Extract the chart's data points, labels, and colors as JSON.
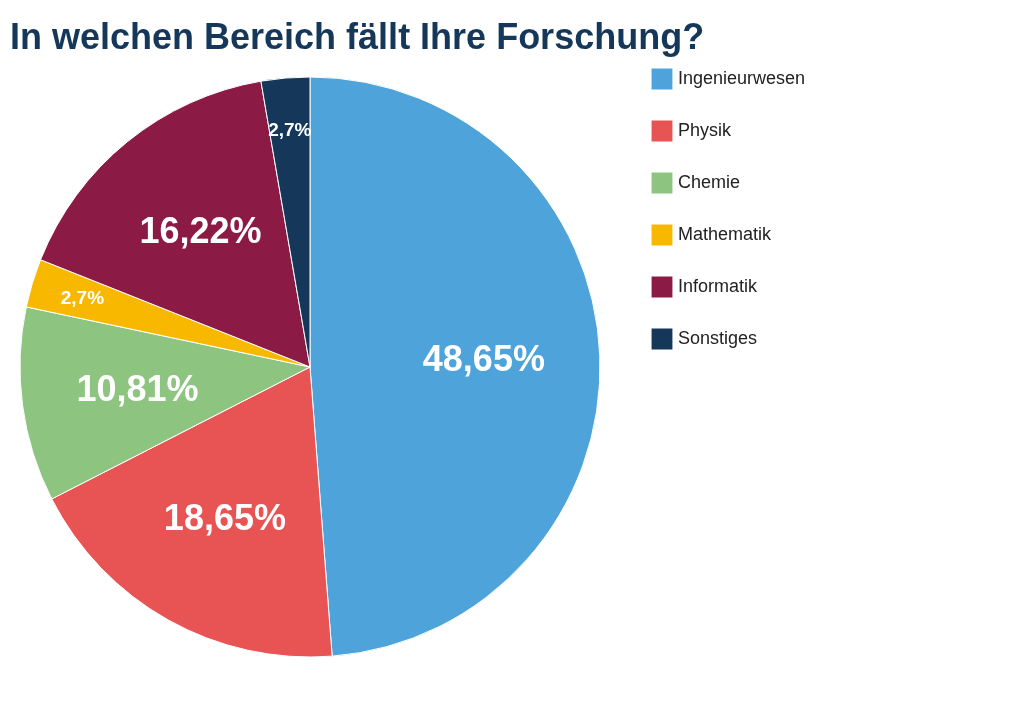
{
  "chart_data": {
    "type": "pie",
    "title": "In welchen Bereich fällt Ihre Forschung?",
    "categories": [
      "Ingenieurwesen",
      "Physik",
      "Chemie",
      "Mathematik",
      "Informatik",
      "Sonstiges"
    ],
    "values": [
      48.65,
      18.65,
      10.81,
      2.7,
      16.22,
      2.7
    ],
    "value_labels": [
      "48,65%",
      "18,65%",
      "10,81%",
      "2,7%",
      "16,22%",
      "2,7%"
    ],
    "colors": [
      "#4fa3db",
      "#e85353",
      "#8dc47f",
      "#f8b800",
      "#8b1a45",
      "#14375a"
    ],
    "legend": "right"
  }
}
